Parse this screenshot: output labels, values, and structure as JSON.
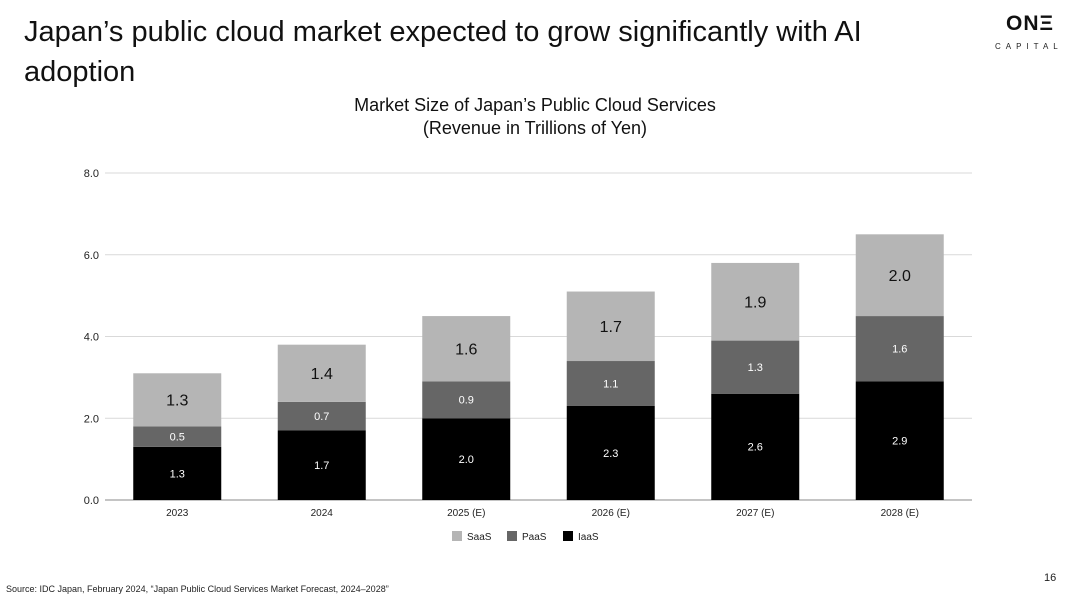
{
  "header": {
    "title": "Japan’s public cloud market expected to grow significantly with AI adoption"
  },
  "logo": {
    "main": "ONΞ",
    "sub": "CAPITAL"
  },
  "footer": {
    "source": "Source: IDC Japan, February 2024, “Japan Public Cloud Services Market Forecast, 2024–2028”",
    "page_number": "16"
  },
  "colors": {
    "saas": "#b5b5b5",
    "paas": "#666666",
    "iaas": "#000000",
    "grid": "#d9d9d9"
  },
  "chart_data": {
    "type": "bar",
    "stacked": true,
    "title": "Market Size of Japan’s Public Cloud Services",
    "subtitle": "(Revenue in Trillions of Yen)",
    "categories": [
      "2023",
      "2024",
      "2025 (E)",
      "2026 (E)",
      "2027 (E)",
      "2028 (E)"
    ],
    "series": [
      {
        "name": "IaaS",
        "values": [
          1.3,
          1.7,
          2.0,
          2.3,
          2.6,
          2.9
        ],
        "labels": [
          "1.3",
          "1.7",
          "2.0",
          "2.3",
          "2.6",
          "2.9"
        ]
      },
      {
        "name": "PaaS",
        "values": [
          0.5,
          0.7,
          0.9,
          1.1,
          1.3,
          1.6
        ],
        "labels": [
          "0.5",
          "0.7",
          "0.9",
          "1.1",
          "1.3",
          "1.6"
        ]
      },
      {
        "name": "SaaS",
        "values": [
          1.3,
          1.4,
          1.6,
          1.7,
          1.9,
          2.0
        ],
        "labels": [
          "1.3",
          "1.4",
          "1.6",
          "1.7",
          "1.9",
          "2.0"
        ]
      }
    ],
    "legend": [
      "SaaS",
      "PaaS",
      "IaaS"
    ],
    "legend_position": "bottom",
    "ylim": [
      0,
      8
    ],
    "yticks": [
      "0.0",
      "2.0",
      "4.0",
      "6.0",
      "8.0"
    ],
    "xlabel": "",
    "ylabel": "",
    "grid": true
  }
}
